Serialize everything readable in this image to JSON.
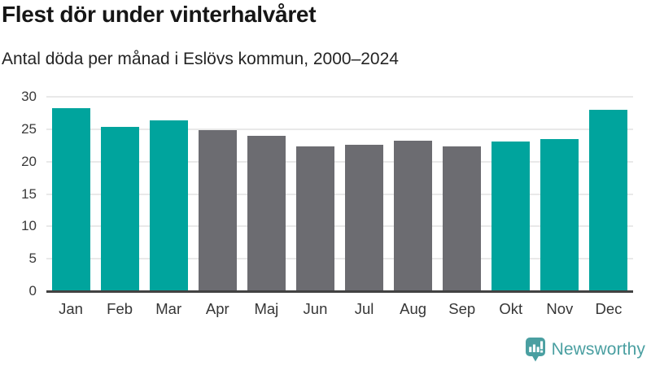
{
  "header": {
    "title": "Flest dör under vinterhalvåret",
    "subtitle": "Antal döda per månad i Eslövs kommun, 2000–2024"
  },
  "chart_data": {
    "type": "bar",
    "title": "Flest dör under vinterhalvåret",
    "subtitle": "Antal döda per månad i Eslövs kommun, 2000–2024",
    "categories": [
      "Jan",
      "Feb",
      "Mar",
      "Apr",
      "Maj",
      "Jun",
      "Jul",
      "Aug",
      "Sep",
      "Okt",
      "Nov",
      "Dec"
    ],
    "values": [
      28.2,
      25.4,
      26.4,
      24.8,
      24.0,
      22.4,
      22.6,
      23.2,
      22.3,
      23.1,
      23.5,
      28.0
    ],
    "bar_color_keys": [
      "teal",
      "teal",
      "teal",
      "gray",
      "gray",
      "gray",
      "gray",
      "gray",
      "gray",
      "teal",
      "teal",
      "teal"
    ],
    "colors": {
      "teal": "#00a49d",
      "gray": "#6c6c71"
    },
    "xlabel": "",
    "ylabel": "",
    "ylim": [
      0,
      30
    ],
    "yticks": [
      0,
      5,
      10,
      15,
      20,
      25,
      30
    ],
    "grid": true,
    "legend": "none"
  },
  "footer": {
    "brand": "Newsworthy",
    "brand_color": "#4a9fa1",
    "logo_icon": "newsworthy-chart-bubble-icon"
  }
}
